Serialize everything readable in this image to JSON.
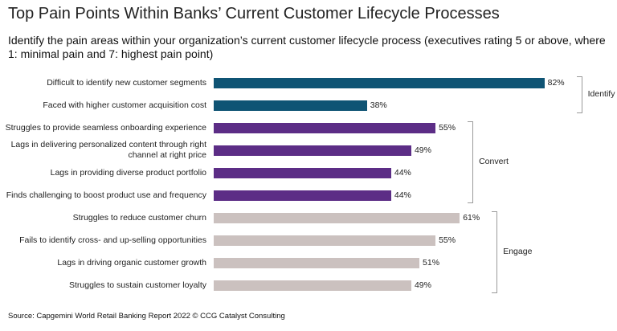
{
  "chart_data": {
    "type": "bar",
    "orientation": "horizontal",
    "title": "Top Pain Points Within Banks’ Current Customer Lifecycle Processes",
    "subtitle": "Identify the pain areas within your organization’s current customer lifecycle process (executives rating 5 or above, where 1: minimal pain and 7: highest pain point)",
    "source": "Source: Capgemini World Retail Banking Report 2022 © CCG Catalyst Consulting",
    "series": [
      {
        "name": "Identify",
        "color": "#0f5474",
        "categories": [
          "Difficult to identify new customer segments",
          "Faced with higher customer acquisition cost"
        ],
        "values": [
          82,
          38
        ],
        "value_labels": [
          "82%",
          "38%"
        ]
      },
      {
        "name": "Convert",
        "color": "#5c2d86",
        "categories": [
          "Struggles to provide seamless onboarding experience",
          "Lags in delivering personalized content through right channel at right price",
          "Lags in providing diverse product portfolio",
          "Finds challenging to boost product use and frequency"
        ],
        "values": [
          55,
          49,
          44,
          44
        ],
        "value_labels": [
          "55%",
          "49%",
          "44%",
          "44%"
        ]
      },
      {
        "name": "Engage",
        "color": "#cbc1bf",
        "categories": [
          "Struggles to reduce customer churn",
          "Fails to identify cross- and up-selling opportunities",
          "Lags in driving organic customer growth",
          "Struggles to sustain customer loyalty"
        ],
        "values": [
          61,
          55,
          51,
          49
        ],
        "value_labels": [
          "61%",
          "55%",
          "51%",
          "49%"
        ]
      }
    ]
  }
}
